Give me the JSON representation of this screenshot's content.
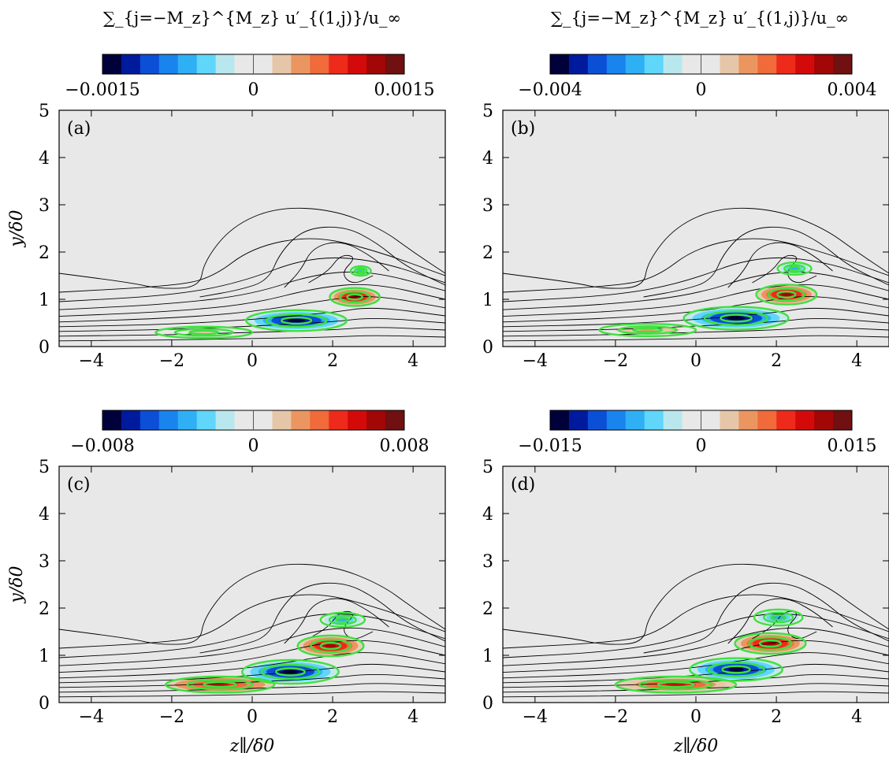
{
  "figure": {
    "titles": [
      "∑_{j=−M_z}^{M_z} u′_{(1,j)}/u_∞",
      "∑_{j=−M_z}^{M_z} u′_{(1,j)}/u_∞"
    ]
  },
  "colormap": [
    "#00003a",
    "#001a9e",
    "#0a4fd6",
    "#1a84ee",
    "#2fb0f5",
    "#5fd6fa",
    "#b8e8ee",
    "#e8e8e8",
    "#e8e8e8",
    "#e6c6a8",
    "#eb9660",
    "#f06a3a",
    "#ee2a1a",
    "#d40a0a",
    "#a20606",
    "#701010"
  ],
  "styles": {
    "background": "#e8e8e8",
    "streamline_color": "#000000",
    "green_contour": "#3fe03f"
  },
  "chart_data": [
    {
      "type": "heatmap",
      "panel": "(a)",
      "xlabel": "",
      "ylabel": "y/δ0",
      "xlim": [
        -4.8,
        4.8
      ],
      "ylim": [
        0,
        5
      ],
      "xticks": [
        "−4",
        "−2",
        "0",
        "2",
        "4"
      ],
      "yticks": [
        "0",
        "1",
        "2",
        "3",
        "4",
        "5"
      ],
      "colorbar": {
        "min": -0.0015,
        "max": 0.0015,
        "labels": [
          "−0.0015",
          "0",
          "0.0015"
        ]
      },
      "blobs": [
        {
          "x": 1.1,
          "y": 0.55,
          "rx": 1.25,
          "ry": 0.22,
          "amp": -1.0
        },
        {
          "x": 2.55,
          "y": 1.05,
          "rx": 0.62,
          "ry": 0.19,
          "amp": 0.9
        },
        {
          "x": 2.7,
          "y": 1.6,
          "rx": 0.25,
          "ry": 0.1,
          "amp": -0.45
        },
        {
          "x": -1.2,
          "y": 0.3,
          "rx": 1.2,
          "ry": 0.12,
          "amp": 0.18
        }
      ]
    },
    {
      "type": "heatmap",
      "panel": "(b)",
      "xlabel": "",
      "ylabel": "",
      "xlim": [
        -4.8,
        4.8
      ],
      "ylim": [
        0,
        5
      ],
      "xticks": [
        "−4",
        "−2",
        "0",
        "2",
        "4"
      ],
      "yticks": [
        "0",
        "1",
        "2",
        "3",
        "4",
        "5"
      ],
      "colorbar": {
        "min": -0.004,
        "max": 0.004,
        "labels": [
          "−0.004",
          "0",
          "0.004"
        ]
      },
      "blobs": [
        {
          "x": 1.0,
          "y": 0.6,
          "rx": 1.3,
          "ry": 0.24,
          "amp": -1.0
        },
        {
          "x": 2.25,
          "y": 1.1,
          "rx": 0.75,
          "ry": 0.21,
          "amp": 0.9
        },
        {
          "x": 2.45,
          "y": 1.65,
          "rx": 0.42,
          "ry": 0.13,
          "amp": -0.5
        },
        {
          "x": -1.2,
          "y": 0.35,
          "rx": 1.2,
          "ry": 0.13,
          "amp": 0.28
        }
      ]
    },
    {
      "type": "heatmap",
      "panel": "(c)",
      "xlabel": "z∥/δ0",
      "ylabel": "y/δ0",
      "xlim": [
        -4.8,
        4.8
      ],
      "ylim": [
        0,
        5
      ],
      "xticks": [
        "−4",
        "−2",
        "0",
        "2",
        "4"
      ],
      "yticks": [
        "0",
        "1",
        "2",
        "3",
        "4",
        "5"
      ],
      "colorbar": {
        "min": -0.008,
        "max": 0.008,
        "labels": [
          "−0.008",
          "0",
          "0.008"
        ]
      },
      "blobs": [
        {
          "x": 0.95,
          "y": 0.65,
          "rx": 1.2,
          "ry": 0.25,
          "amp": -1.0
        },
        {
          "x": 1.95,
          "y": 1.2,
          "rx": 0.82,
          "ry": 0.22,
          "amp": 0.9
        },
        {
          "x": 2.25,
          "y": 1.75,
          "rx": 0.55,
          "ry": 0.15,
          "amp": -0.5
        },
        {
          "x": -0.8,
          "y": 0.38,
          "rx": 1.35,
          "ry": 0.17,
          "amp": 0.75
        }
      ]
    },
    {
      "type": "heatmap",
      "panel": "(d)",
      "xlabel": "z∥/δ0",
      "ylabel": "",
      "xlim": [
        -4.8,
        4.8
      ],
      "ylim": [
        0,
        5
      ],
      "xticks": [
        "−4",
        "−2",
        "0",
        "2",
        "4"
      ],
      "yticks": [
        "0",
        "1",
        "2",
        "3",
        "4",
        "5"
      ],
      "colorbar": {
        "min": -0.015,
        "max": 0.015,
        "labels": [
          "−0.015",
          "0",
          "0.015"
        ]
      },
      "blobs": [
        {
          "x": 1.0,
          "y": 0.7,
          "rx": 1.15,
          "ry": 0.24,
          "amp": -1.0
        },
        {
          "x": 1.85,
          "y": 1.25,
          "rx": 0.88,
          "ry": 0.22,
          "amp": 0.9
        },
        {
          "x": 2.05,
          "y": 1.8,
          "rx": 0.6,
          "ry": 0.17,
          "amp": -0.5
        },
        {
          "x": -0.5,
          "y": 0.38,
          "rx": 1.5,
          "ry": 0.17,
          "amp": 0.7
        }
      ]
    }
  ]
}
